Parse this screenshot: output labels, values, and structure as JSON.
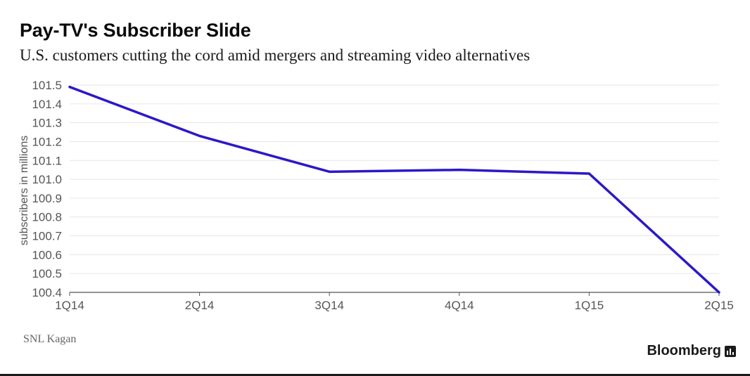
{
  "header": {
    "title": "Pay-TV's Subscriber Slide",
    "subtitle": "U.S. customers cutting the cord amid mergers and streaming video alternatives"
  },
  "footer": {
    "source": "SNL Kagan",
    "brand": "Bloomberg",
    "brand_icon": "bar-chart-icon"
  },
  "colors": {
    "line": "#2b18c9",
    "grid": "#e6e6e6",
    "axis": "#555555",
    "tick_text": "#555555"
  },
  "chart_data": {
    "type": "line",
    "title": "Pay-TV's Subscriber Slide",
    "subtitle": "U.S. customers cutting the cord amid mergers and streaming video alternatives",
    "xlabel": "",
    "ylabel": "subscribers in millions",
    "categories": [
      "1Q14",
      "2Q14",
      "3Q14",
      "4Q14",
      "1Q15",
      "2Q15"
    ],
    "series": [
      {
        "values": [
          101.49,
          101.23,
          101.04,
          101.05,
          101.03,
          100.4
        ]
      }
    ],
    "ylim": [
      100.4,
      101.5
    ],
    "yticks": [
      "101.5",
      "101.4",
      "101.3",
      "101.2",
      "101.1",
      "101.0",
      "100.9",
      "100.8",
      "100.7",
      "100.6",
      "100.5",
      "100.4"
    ],
    "grid": true,
    "legend": "none",
    "source": "SNL Kagan"
  }
}
